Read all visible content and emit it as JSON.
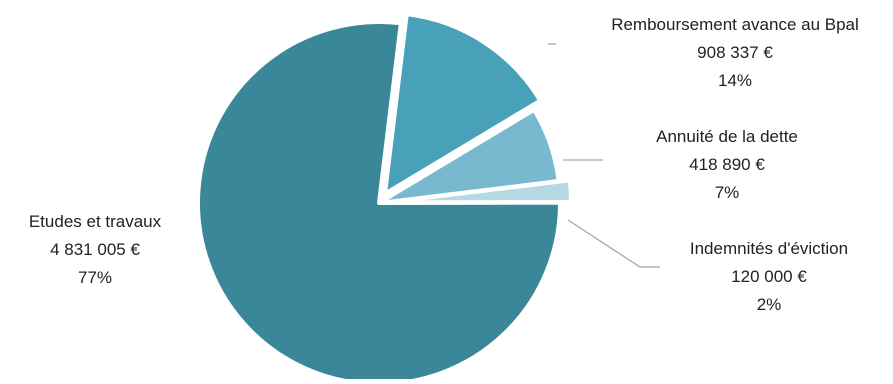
{
  "chart_data": {
    "type": "pie",
    "title": "",
    "slices": [
      {
        "label": "Remboursement avance au Bpal",
        "value_text": "908 337 €",
        "value": 908337,
        "percent_text": "14%",
        "color": "#48a1b9"
      },
      {
        "label": "Annuité de la dette",
        "value_text": "418 890 €",
        "value": 418890,
        "percent_text": "7%",
        "color": "#79b9cf"
      },
      {
        "label": "Indemnités d'éviction",
        "value_text": "120 000 €",
        "value": 120000,
        "percent_text": "2%",
        "color": "#b5d8e2"
      },
      {
        "label": "Etudes et travaux",
        "value_text": "4 831 005 €",
        "value": 4831005,
        "percent_text": "77%",
        "color": "#3a8799"
      }
    ],
    "exploded_slices": [
      "Remboursement avance au Bpal",
      "Indemnités d'éviction"
    ],
    "legend": "none",
    "data_labels": "outside with leader lines"
  }
}
